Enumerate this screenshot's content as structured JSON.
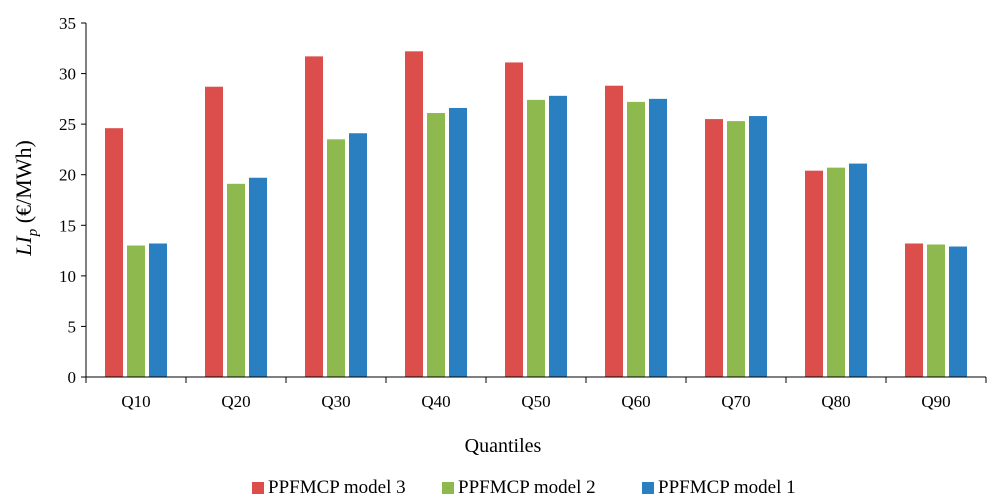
{
  "chart_data": {
    "type": "bar",
    "title": "",
    "xlabel": "Quantiles",
    "ylabel_main": "LI",
    "ylabel_sub": "p",
    "ylabel_unit": " (€/MWh)",
    "ylim": [
      0,
      35
    ],
    "yticks": [
      0,
      5,
      10,
      15,
      20,
      25,
      30,
      35
    ],
    "grid": false,
    "legend_position": "bottom",
    "categories": [
      "Q10",
      "Q20",
      "Q30",
      "Q40",
      "Q50",
      "Q60",
      "Q70",
      "Q80",
      "Q90"
    ],
    "series": [
      {
        "name": "PPFMCP model 3",
        "color": "#dc4e4c",
        "values": [
          24.6,
          28.7,
          31.7,
          32.2,
          31.1,
          28.8,
          25.5,
          20.4,
          13.2
        ]
      },
      {
        "name": "PPFMCP model 2",
        "color": "#8db94f",
        "values": [
          13.0,
          19.1,
          23.5,
          26.1,
          27.4,
          27.2,
          25.3,
          20.7,
          13.1
        ]
      },
      {
        "name": "PPFMCP model 1",
        "color": "#2a7fc0",
        "values": [
          13.2,
          19.7,
          24.1,
          26.6,
          27.8,
          27.5,
          25.8,
          21.1,
          12.9
        ]
      }
    ]
  }
}
